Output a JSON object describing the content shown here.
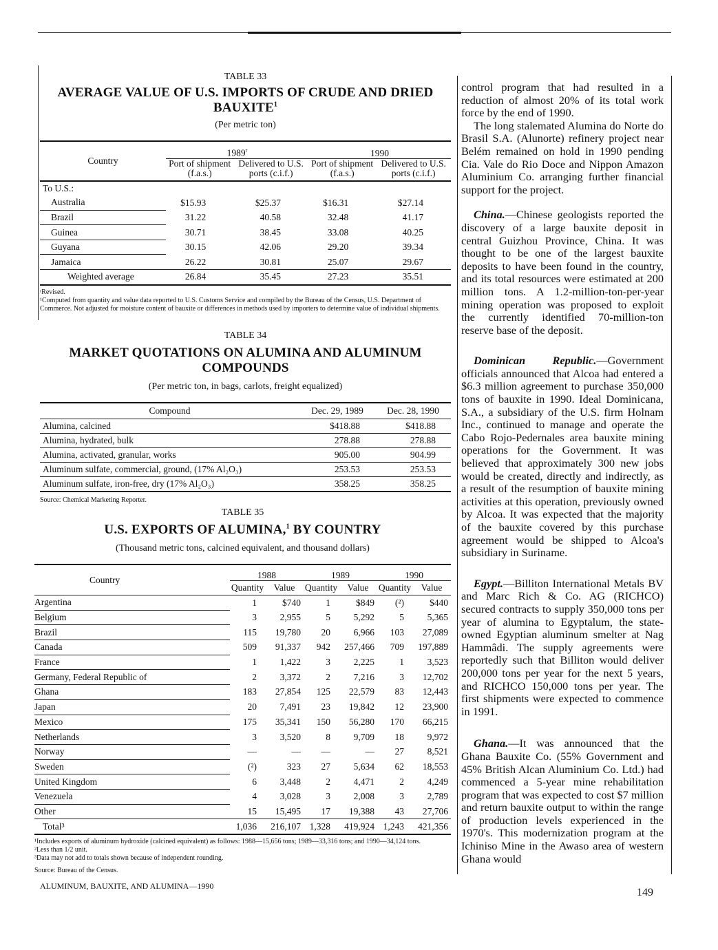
{
  "table33": {
    "number": "TABLE 33",
    "title": "AVERAGE VALUE OF U.S. IMPORTS OF CRUDE AND DRIED BAUXITE",
    "title_sup": "1",
    "subtitle": "(Per metric ton)",
    "col_country": "Country",
    "year1": "1989",
    "year1_sup": "r",
    "year2": "1990",
    "sub_headers": [
      "Port of shipment (f.a.s.)",
      "Delivered to U.S. ports (c.i.f.)",
      "Port of shipment (f.a.s.)",
      "Delivered to U.S. ports (c.i.f.)"
    ],
    "group_label": "To U.S.:",
    "rows": [
      {
        "country": "Australia",
        "values": [
          "$15.93",
          "$25.37",
          "$16.31",
          "$27.14"
        ]
      },
      {
        "country": "Brazil",
        "values": [
          "31.22",
          "40.58",
          "32.48",
          "41.17"
        ]
      },
      {
        "country": "Guinea",
        "values": [
          "30.71",
          "38.45",
          "33.08",
          "40.25"
        ]
      },
      {
        "country": "Guyana",
        "values": [
          "30.15",
          "42.06",
          "29.20",
          "39.34"
        ]
      },
      {
        "country": "Jamaica",
        "values": [
          "26.22",
          "30.81",
          "25.07",
          "29.67"
        ]
      }
    ],
    "total": {
      "country": "Weighted average",
      "values": [
        "26.84",
        "35.45",
        "27.23",
        "35.51"
      ]
    },
    "footnotes": [
      "ʳRevised.",
      "¹Computed from quantity and value data reported to U.S. Customs Service and compiled by the Bureau of the Census, U.S. Department of Commerce. Not adjusted for moisture content of bauxite or differences in methods used by importers to determine value of individual shipments."
    ]
  },
  "table34": {
    "number": "TABLE 34",
    "title": "MARKET QUOTATIONS ON ALUMINA AND ALUMINUM COMPOUNDS",
    "subtitle": "(Per metric ton, in bags, carlots, freight equalized)",
    "headers": [
      "Compound",
      "Dec. 29, 1989",
      "Dec. 28, 1990"
    ],
    "rows": [
      {
        "compound": "Alumina, calcined",
        "values": [
          "$418.88",
          "$418.88"
        ]
      },
      {
        "compound": "Alumina, hydrated, bulk",
        "values": [
          "278.88",
          "278.88"
        ]
      },
      {
        "compound": "Alumina, activated, granular, works",
        "values": [
          "905.00",
          "904.99"
        ]
      },
      {
        "compound": "Aluminum sulfate, commercial, ground, (17% Al₂O₃)",
        "values": [
          "253.53",
          "253.53"
        ]
      },
      {
        "compound": "Aluminum sulfate, iron-free, dry (17% Al₂O₃)",
        "values": [
          "358.25",
          "358.25"
        ]
      }
    ],
    "source": "Source: Chemical Marketing Reporter."
  },
  "table35": {
    "number": "TABLE 35",
    "title": "U.S. EXPORTS OF ALUMINA,",
    "title_sup": "1",
    "title_end": " BY COUNTRY",
    "subtitle": "(Thousand metric tons, calcined equivalent, and thousand dollars)",
    "col_country": "Country",
    "years": [
      "1988",
      "1989",
      "1990"
    ],
    "sub_headers": [
      "Quantity",
      "Value"
    ],
    "rows": [
      {
        "country": "Argentina",
        "values": [
          "1",
          "$740",
          "1",
          "$849",
          "(²)",
          "$440"
        ]
      },
      {
        "country": "Belgium",
        "values": [
          "3",
          "2,955",
          "5",
          "5,292",
          "5",
          "5,365"
        ]
      },
      {
        "country": "Brazil",
        "values": [
          "115",
          "19,780",
          "20",
          "6,966",
          "103",
          "27,089"
        ]
      },
      {
        "country": "Canada",
        "values": [
          "509",
          "91,337",
          "942",
          "257,466",
          "709",
          "197,889"
        ]
      },
      {
        "country": "France",
        "values": [
          "1",
          "1,422",
          "3",
          "2,225",
          "1",
          "3,523"
        ]
      },
      {
        "country": "Germany, Federal Republic of",
        "values": [
          "2",
          "3,372",
          "2",
          "7,216",
          "3",
          "12,702"
        ]
      },
      {
        "country": "Ghana",
        "values": [
          "183",
          "27,854",
          "125",
          "22,579",
          "83",
          "12,443"
        ]
      },
      {
        "country": "Japan",
        "values": [
          "20",
          "7,491",
          "23",
          "19,842",
          "12",
          "23,900"
        ]
      },
      {
        "country": "Mexico",
        "values": [
          "175",
          "35,341",
          "150",
          "56,280",
          "170",
          "66,215"
        ]
      },
      {
        "country": "Netherlands",
        "values": [
          "3",
          "3,520",
          "8",
          "9,709",
          "18",
          "9,972"
        ]
      },
      {
        "country": "Norway",
        "values": [
          "—",
          "—",
          "—",
          "—",
          "27",
          "8,521"
        ]
      },
      {
        "country": "Sweden",
        "values": [
          "(²)",
          "323",
          "27",
          "5,634",
          "62",
          "18,553"
        ]
      },
      {
        "country": "United Kingdom",
        "values": [
          "6",
          "3,448",
          "2",
          "4,471",
          "2",
          "4,249"
        ]
      },
      {
        "country": "Venezuela",
        "values": [
          "4",
          "3,028",
          "3",
          "2,008",
          "3",
          "2,789"
        ]
      },
      {
        "country": "Other",
        "values": [
          "15",
          "15,495",
          "17",
          "19,388",
          "43",
          "27,706"
        ]
      }
    ],
    "total": {
      "country": "Total³",
      "values": [
        "1,036",
        "216,107",
        "1,328",
        "419,924",
        "1,243",
        "421,356"
      ]
    },
    "footnotes": [
      "¹Includes exports of aluminum hydroxide (calcined equivalent) as follows: 1988—15,656 tons; 1989—33,316 tons; and 1990—34,124 tons.",
      "²Less than 1/2 unit.",
      "³Data may not add to totals shown because of independent rounding.",
      "Source: Bureau of the Census."
    ]
  },
  "right_column": {
    "paragraphs": [
      {
        "lead": "",
        "text": "control program that had resulted in a reduction of almost 20% of its total work force by the end of 1990."
      },
      {
        "lead": "",
        "text": "The long stalemated Alumina do Norte do Brasil S.A. (Alunorte) refinery project near Belém remained on hold in 1990 pending Cia. Vale do Rio Doce and Nippon Amazon Aluminium Co. arranging further financial support for the project."
      },
      {
        "lead": "China.",
        "text": "—Chinese geologists reported the discovery of a large bauxite deposit in central Guizhou Province, China. It was thought to be one of the largest bauxite deposits to have been found in the country, and its total resources were estimated at 200 million tons. A 1.2-million-ton-per-year mining operation was proposed to exploit the currently identified 70-million-ton reserve base of the deposit."
      },
      {
        "lead": "Dominican Republic.",
        "text": "—Government officials announced that Alcoa had entered a $6.3 million agreement to purchase 350,000 tons of bauxite in 1990. Ideal Dominicana, S.A., a subsidiary of the U.S. firm Holnam Inc., continued to manage and operate the Cabo Rojo-Pedernales area bauxite mining operations for the Government. It was believed that approximately 300 new jobs would be created, directly and indirectly, as a result of the resumption of bauxite mining activities at this operation, previously owned by Alcoa. It was expected that the majority of the bauxite covered by this purchase agreement would be shipped to Alcoa's subsidiary in Suriname."
      },
      {
        "lead": "Egypt.",
        "text": "—Billiton International Metals BV and Marc Rich & Co. AG (RICHCO) secured contracts to supply 350,000 tons per year of alumina to Egyptalum, the state-owned Egyptian aluminum smelter at Nag Hammâdi. The supply agreements were reportedly such that Billiton would deliver 200,000 tons per year for the next 5 years, and RICHCO 150,000 tons per year. The first shipments were expected to commence in 1991."
      },
      {
        "lead": "Ghana.",
        "text": "—It was announced that the Ghana Bauxite Co. (55% Government and 45% British Alcan Aluminium Co. Ltd.) had commenced a 5-year mine rehabilitation program that was expected to cost $7 million and return bauxite output to within the range of production levels experienced in the 1970's. This modernization program at the Ichiniso Mine in the Awaso area of western Ghana would"
      }
    ]
  },
  "footer": {
    "running_title": "ALUMINUM, BAUXITE, AND ALUMINA—1990",
    "page_number": "149"
  }
}
